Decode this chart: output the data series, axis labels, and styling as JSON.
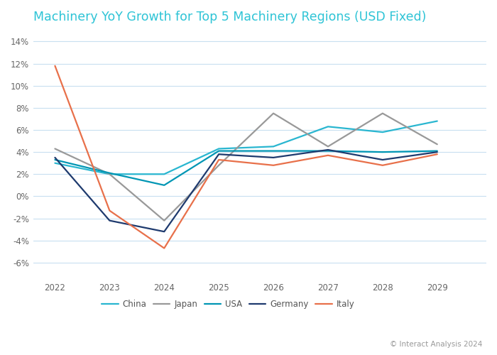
{
  "title": "Machinery YoY Growth for Top 5 Machinery Regions (USD Fixed)",
  "years": [
    2022,
    2023,
    2024,
    2025,
    2026,
    2027,
    2028,
    2029
  ],
  "series": {
    "China": {
      "values": [
        3.0,
        2.0,
        2.0,
        4.3,
        4.5,
        6.3,
        5.8,
        6.8
      ],
      "color": "#29b6d0",
      "linewidth": 1.6
    },
    "Japan": {
      "values": [
        4.3,
        2.0,
        -2.2,
        2.8,
        7.5,
        4.5,
        7.5,
        4.7
      ],
      "color": "#999999",
      "linewidth": 1.6
    },
    "USA": {
      "values": [
        3.3,
        2.1,
        1.0,
        4.1,
        4.1,
        4.1,
        4.0,
        4.1
      ],
      "color": "#0096b4",
      "linewidth": 1.6
    },
    "Germany": {
      "values": [
        3.5,
        -2.2,
        -3.2,
        3.8,
        3.5,
        4.2,
        3.3,
        4.0
      ],
      "color": "#1e3a6e",
      "linewidth": 1.6
    },
    "Italy": {
      "values": [
        11.8,
        -1.3,
        -4.7,
        3.3,
        2.8,
        3.7,
        2.8,
        3.8
      ],
      "color": "#e8704a",
      "linewidth": 1.6
    }
  },
  "ylim": [
    -7.5,
    15.0
  ],
  "yticks": [
    -6,
    -4,
    -2,
    0,
    2,
    4,
    6,
    8,
    10,
    12,
    14
  ],
  "ytick_labels": [
    "-6%",
    "-4%",
    "-2%",
    "0%",
    "2%",
    "4%",
    "6%",
    "8%",
    "10%",
    "12%",
    "14%"
  ],
  "background_color": "#ffffff",
  "grid_color": "#c8dff0",
  "title_color": "#2ec4d6",
  "copyright_text": "© Interact Analysis 2024"
}
